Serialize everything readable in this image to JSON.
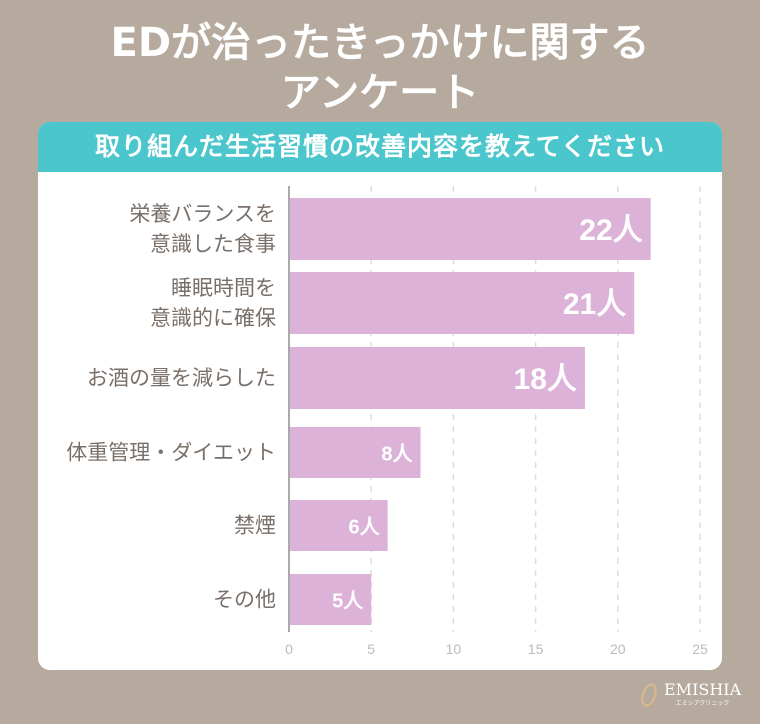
{
  "title_lines": [
    "EDが治ったきっかけに関する",
    "アンケート"
  ],
  "chart_data": {
    "type": "bar",
    "orientation": "horizontal",
    "title": "取り組んだ生活習慣の改善内容を教えてください",
    "categories": [
      [
        "栄養バランスを",
        "意識した食事"
      ],
      [
        "睡眠時間を",
        "意識的に確保"
      ],
      [
        "お酒の量を減らした"
      ],
      [
        "体重管理・ダイエット"
      ],
      [
        "禁煙"
      ],
      [
        "その他"
      ]
    ],
    "values": [
      22,
      21,
      18,
      8,
      6,
      5
    ],
    "data_labels": [
      "22人",
      "21人",
      "18人",
      "8人",
      "6人",
      "5人"
    ],
    "xlim": [
      0,
      25
    ],
    "xticks": [
      "0",
      "5",
      "10",
      "15",
      "20",
      "25"
    ],
    "grid": true,
    "bar_color": "#dcb2d8"
  },
  "logo": {
    "name": "EMISHIA",
    "sub": "エミシアクリニック"
  }
}
